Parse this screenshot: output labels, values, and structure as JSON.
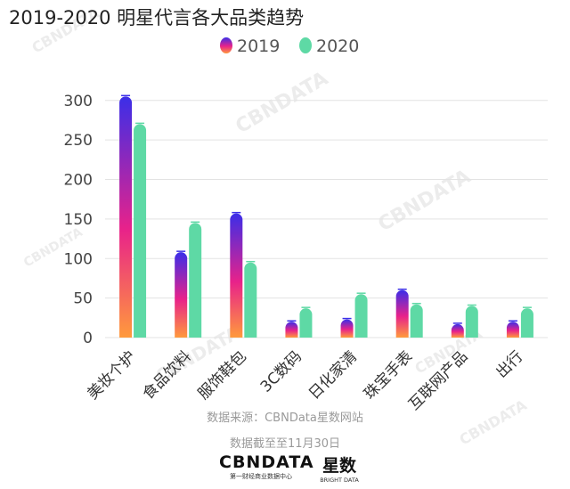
{
  "chart_data": {
    "type": "bar",
    "title": "2019-2020 明星代言各大品类趋势",
    "categories": [
      "美妆个护",
      "食品饮料",
      "服饰鞋包",
      "3C数码",
      "日化家清",
      "珠宝手表",
      "互联网产品",
      "出行"
    ],
    "series": [
      {
        "name": "2019",
        "values": [
          305,
          108,
          157,
          20,
          23,
          60,
          17,
          20
        ]
      },
      {
        "name": "2020",
        "values": [
          270,
          145,
          95,
          37,
          55,
          42,
          40,
          37
        ]
      }
    ],
    "ylim": [
      0,
      320
    ],
    "yticks": [
      0,
      50,
      100,
      150,
      200,
      250,
      300
    ],
    "ytick_labels": [
      "0",
      "50",
      "100",
      "150",
      "200",
      "250",
      "300"
    ],
    "legend_position": "top-center",
    "grid": true,
    "colors": {
      "series_2019_top": "#3b2ee8",
      "series_2019_mid": "#e8228a",
      "series_2019_bottom": "#ff9a3c",
      "series_2020": "#5ed9a5",
      "grid": "#e3e3e3"
    }
  },
  "footer": {
    "source": "数据来源：CBNData星数网站",
    "cutoff": "数据截至至11月30日"
  },
  "logos": {
    "cbndata": "CBNDATA",
    "cbndata_sub": "第一财经商业数据中心",
    "xingshu": "星数",
    "xingshu_sub": "BRIGHT DATA"
  },
  "watermark": "CBNDATA"
}
